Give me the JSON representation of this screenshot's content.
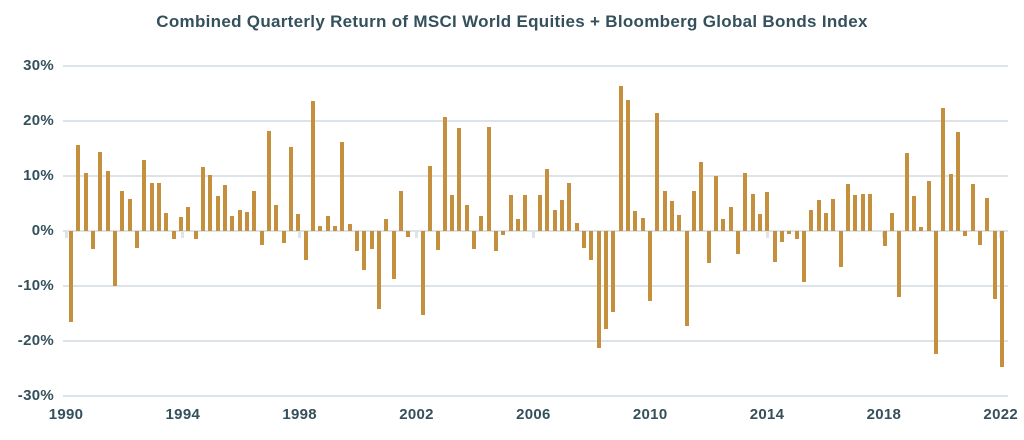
{
  "title": "Combined Quarterly Return of MSCI World Equities + Bloomberg Global Bonds Index",
  "chart_data": {
    "type": "bar",
    "series_name": "Combined quarterly return of MSCI World Equities + Bloomberg Global Bonds Index (%)",
    "frequency": "quarterly",
    "start_period": "1990 Q2",
    "end_period": "2022 Q1",
    "values": [
      -16.5,
      15.7,
      10.5,
      -3.2,
      14.4,
      11.0,
      -10.0,
      7.3,
      5.9,
      -3.0,
      13.0,
      8.8,
      8.7,
      3.2,
      -1.5,
      2.6,
      4.4,
      -1.5,
      11.6,
      10.2,
      6.4,
      8.4,
      2.7,
      3.9,
      3.5,
      7.3,
      -2.5,
      18.2,
      4.7,
      -2.2,
      15.2,
      3.1,
      -5.2,
      23.6,
      1.0,
      2.7,
      1.0,
      16.1,
      1.3,
      -3.6,
      -7.0,
      -3.2,
      -14.2,
      2.1,
      -8.8,
      7.3,
      -1.0,
      0.0,
      -15.2,
      11.8,
      -3.4,
      20.8,
      6.5,
      18.7,
      4.8,
      -3.3,
      2.7,
      19.0,
      -3.7,
      -0.8,
      6.5,
      2.1,
      6.5,
      0.0,
      6.5,
      11.2,
      3.8,
      5.7,
      8.7,
      1.5,
      -3.1,
      -5.2,
      -21.3,
      -17.9,
      -14.7,
      26.3,
      23.9,
      3.6,
      2.4,
      -12.8,
      21.4,
      7.3,
      5.4,
      2.9,
      -17.2,
      7.2,
      12.5,
      -5.9,
      10.0,
      2.1,
      4.4,
      -4.2,
      10.5,
      6.7,
      3.1,
      7.1,
      -5.6,
      -2.0,
      -0.6,
      -1.5,
      -9.2,
      3.9,
      5.6,
      3.3,
      5.9,
      -6.5,
      8.5,
      6.5,
      6.7,
      6.8,
      0.0,
      -2.8,
      3.2,
      -12.0,
      14.1,
      6.4,
      0.8,
      9.1,
      -22.4,
      22.4,
      10.4,
      18.0,
      -0.9,
      8.6,
      -2.6,
      6.0,
      -12.3,
      -24.8
    ],
    "y_ticks": [
      30,
      20,
      10,
      0,
      -10,
      -20,
      -30
    ],
    "y_tick_labels": [
      "30%",
      "20%",
      "10%",
      "0%",
      "-10%",
      "-20%",
      "-30%"
    ],
    "x_tick_labels": [
      "1990",
      "1994",
      "1998",
      "2002",
      "2006",
      "2010",
      "2014",
      "2018",
      "2022"
    ],
    "ylim": [
      -30,
      30
    ],
    "grid": true,
    "legend": false,
    "bar_color": "#C4903E",
    "gridline_color": "#DCE4E9",
    "text_color": "#34505C",
    "background": "#FFFFFF"
  }
}
